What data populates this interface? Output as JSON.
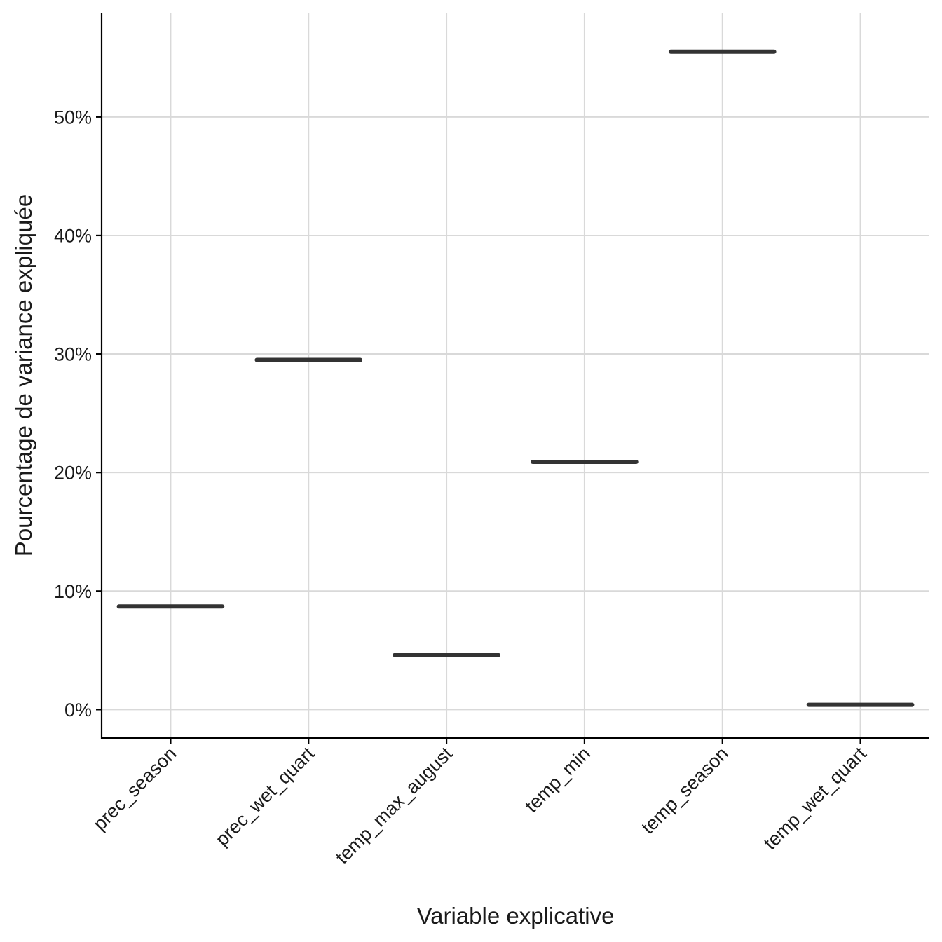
{
  "chart_data": {
    "type": "boxplot",
    "xlabel": "Variable explicative",
    "ylabel": "Pourcentage de variance expliquée",
    "categories": [
      "prec_season",
      "prec_wet_quart",
      "temp_max_august",
      "temp_min",
      "temp_season",
      "temp_wet_quart"
    ],
    "values": [
      8.7,
      29.5,
      4.6,
      20.9,
      55.5,
      0.4
    ],
    "yticks": [
      0,
      10,
      20,
      30,
      40,
      50
    ],
    "ytick_labels": [
      "0%",
      "10%",
      "20%",
      "30%",
      "40%",
      "50%"
    ],
    "ylim": [
      -2.4,
      58.8
    ],
    "grid": true,
    "legend": "none",
    "colors": {
      "median": "#333333",
      "grid": "#d9d9d9",
      "axis": "#000000"
    }
  }
}
